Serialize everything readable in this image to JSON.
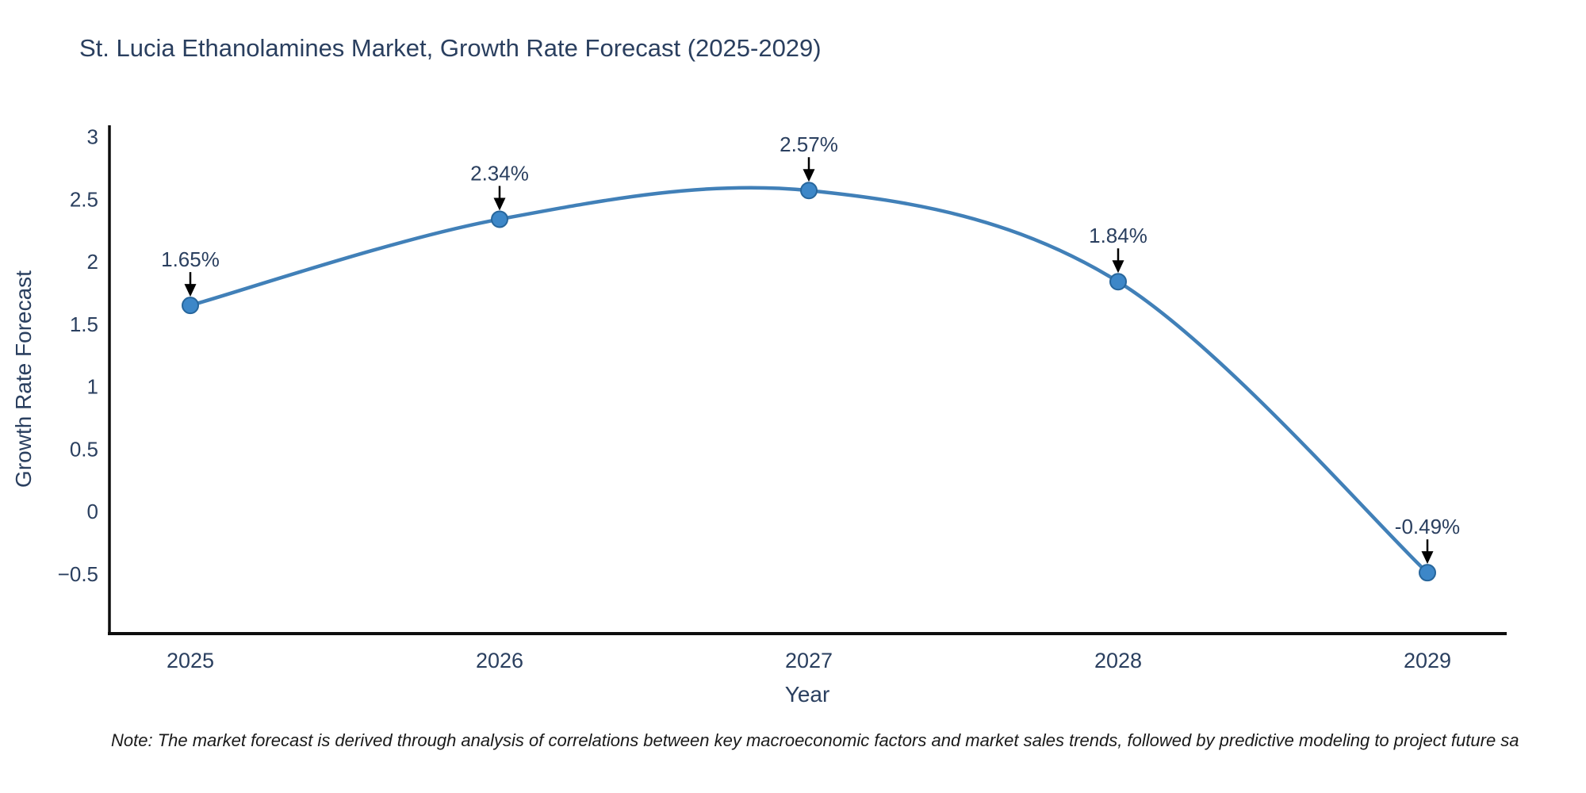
{
  "chart_data": {
    "type": "line",
    "title": "St. Lucia Ethanolamines Market, Growth Rate Forecast (2025-2029)",
    "xlabel": "Year",
    "ylabel": "Growth Rate Forecast",
    "categories": [
      "2025",
      "2026",
      "2027",
      "2028",
      "2029"
    ],
    "values": [
      1.65,
      2.34,
      2.57,
      1.84,
      -0.49
    ],
    "point_labels": [
      "1.65%",
      "2.34%",
      "2.57%",
      "1.84%",
      "-0.49%"
    ],
    "yticks": [
      3,
      2.5,
      2,
      1.5,
      1,
      0.5,
      0,
      -0.5
    ],
    "ylim": [
      -0.98,
      3.1
    ],
    "grid": false,
    "legend": "none",
    "line_shape": "spline",
    "marker": "circle",
    "annotation_arrow": "down-arrow-to-point",
    "colors": {
      "line": "#4180b8",
      "marker_fill": "#3d87c8",
      "marker_edge": "#27669c",
      "text": "#2a3f5f",
      "axis": "#0d0d0d",
      "arrow": "#000000",
      "background": "#ffffff"
    },
    "note": "Note: The market forecast is derived through analysis of correlations between key macroeconomic factors and market sales trends, followed by predictive modeling to project future sa"
  }
}
